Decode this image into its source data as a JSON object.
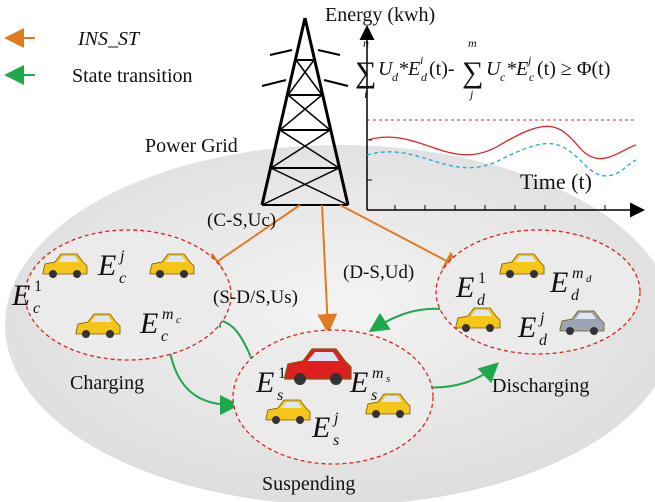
{
  "legend": [
    {
      "label": "INS_ST"
    },
    {
      "label": "State transition"
    }
  ],
  "tower_label": "Power Grid",
  "inset": {
    "y_label": "Energy (kwh)",
    "x_label": "Time (t)",
    "formula": [
      "∑",
      "n",
      "i",
      "U",
      "d",
      "*E",
      "i",
      "d",
      "(t)-",
      "∑",
      "m",
      "j",
      "U",
      "c",
      "*E",
      "j",
      "c",
      "(t) ≥ Φ(t)"
    ]
  },
  "edges": [
    {
      "label": "(C-S,Uc)"
    },
    {
      "label": "(S-D/S,Us)"
    },
    {
      "label": "(D-S,Ud)"
    }
  ],
  "nodes": [
    {
      "label": "Charging",
      "symbols": [
        {
          "base": "E",
          "sub": "c",
          "sup": "1"
        },
        {
          "base": "E",
          "sub": "c",
          "sup": "j"
        },
        {
          "base": "E",
          "sub": "c",
          "sup": "m",
          "sup_sub": "c"
        }
      ]
    },
    {
      "label": "Suspending",
      "symbols": [
        {
          "base": "E",
          "sub": "s",
          "sup": "1"
        },
        {
          "base": "E",
          "sub": "s",
          "sup": "m",
          "sup_sub": "s"
        },
        {
          "base": "E",
          "sub": "s",
          "sup": "j"
        }
      ]
    },
    {
      "label": "Discharging",
      "symbols": [
        {
          "base": "E",
          "sub": "d",
          "sup": "1"
        },
        {
          "base": "E",
          "sub": "d",
          "sup": "m",
          "sup_sub": "d"
        },
        {
          "base": "E",
          "sub": "d",
          "sup": "j"
        }
      ]
    }
  ]
}
